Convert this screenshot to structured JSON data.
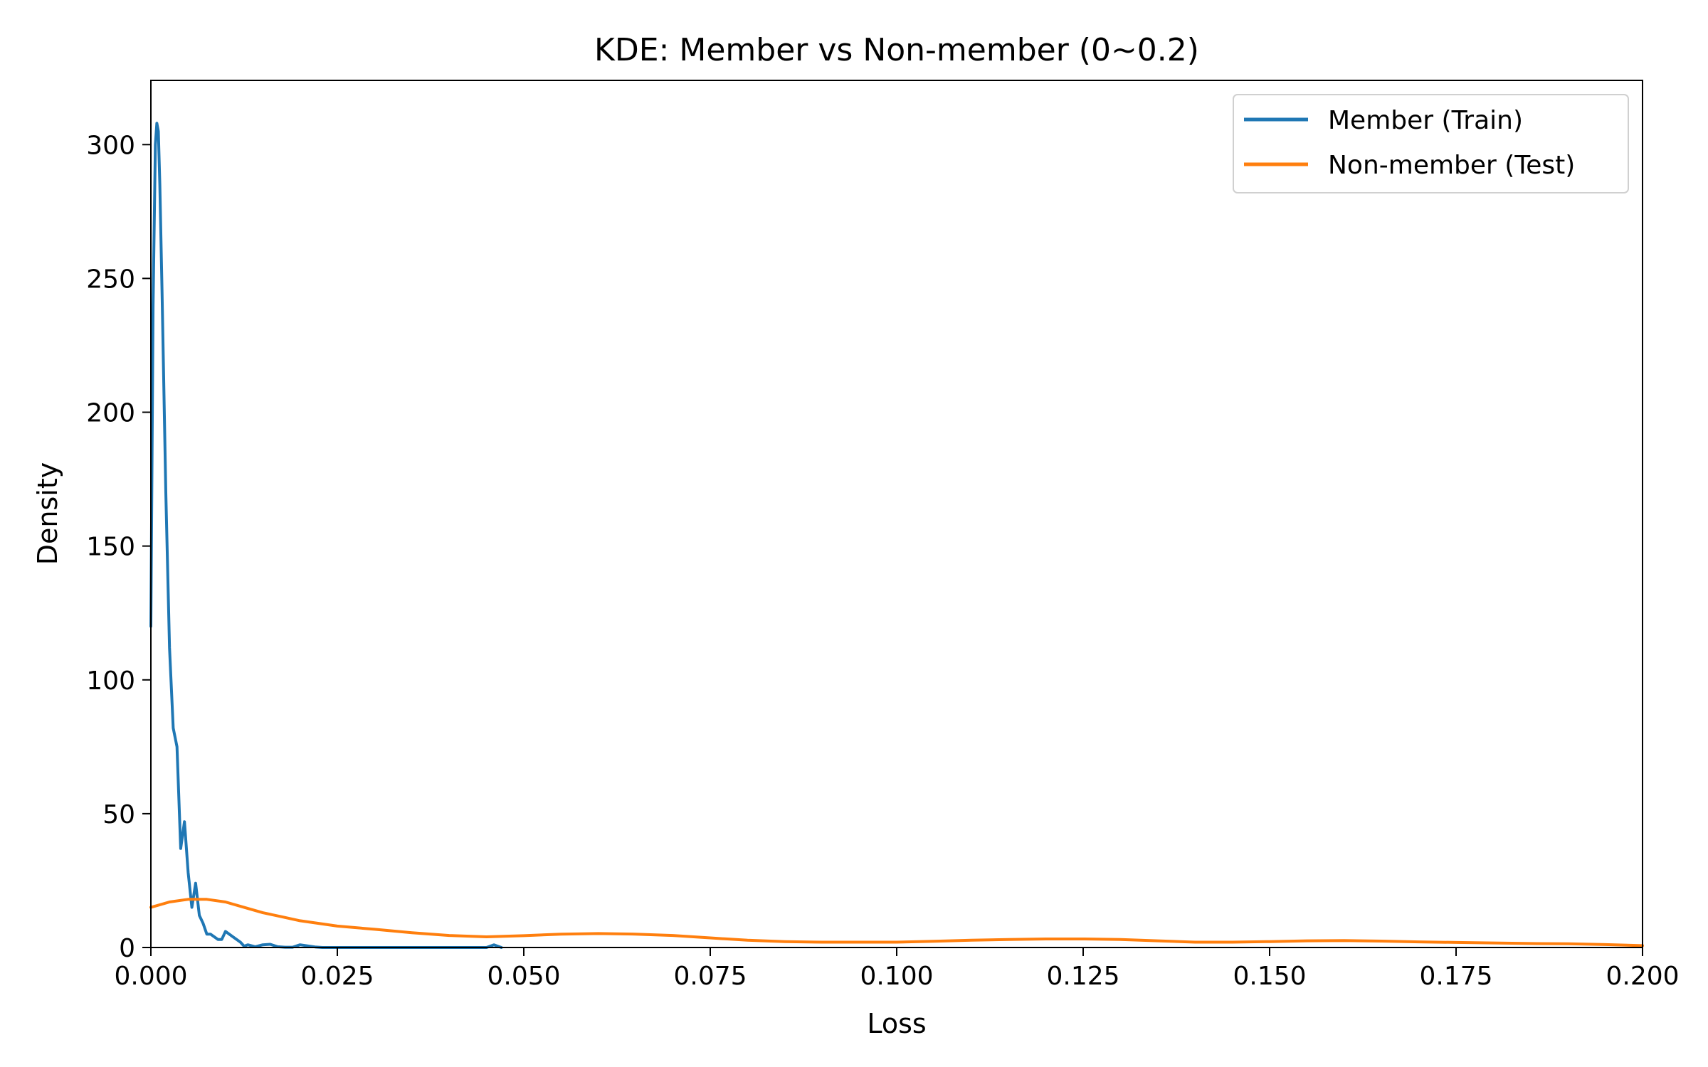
{
  "chart_data": {
    "type": "line",
    "title": "KDE: Member vs Non-member (0~0.2)",
    "xlabel": "Loss",
    "ylabel": "Density",
    "xlim": [
      0.0,
      0.2
    ],
    "ylim": [
      0,
      324
    ],
    "xticks": [
      "0.000",
      "0.025",
      "0.050",
      "0.075",
      "0.100",
      "0.125",
      "0.150",
      "0.175",
      "0.200"
    ],
    "xtick_values": [
      0.0,
      0.025,
      0.05,
      0.075,
      0.1,
      0.125,
      0.15,
      0.175,
      0.2
    ],
    "yticks": [
      "0",
      "50",
      "100",
      "150",
      "200",
      "250",
      "300"
    ],
    "ytick_values": [
      0,
      50,
      100,
      150,
      200,
      250,
      300
    ],
    "grid": false,
    "legend": {
      "placement": "top-right"
    },
    "series": [
      {
        "name": "Member (Train)",
        "color": "#1f77b4",
        "x": [
          0.0,
          0.0003,
          0.0006,
          0.0008,
          0.001,
          0.0012,
          0.0015,
          0.002,
          0.0025,
          0.003,
          0.0035,
          0.004,
          0.0045,
          0.005,
          0.0055,
          0.006,
          0.0065,
          0.007,
          0.0075,
          0.008,
          0.0085,
          0.009,
          0.0095,
          0.01,
          0.011,
          0.012,
          0.0125,
          0.013,
          0.014,
          0.015,
          0.016,
          0.017,
          0.018,
          0.019,
          0.02,
          0.022,
          0.023,
          0.025,
          0.03,
          0.04,
          0.045,
          0.046,
          0.0465,
          0.047
        ],
        "values": [
          120,
          240,
          300,
          308,
          305,
          285,
          245,
          170,
          112,
          82,
          75,
          37,
          47,
          28,
          15,
          24,
          12,
          9,
          5,
          5,
          4,
          3,
          3,
          6,
          4,
          2,
          0.5,
          1,
          0.3,
          1,
          1.2,
          0.3,
          0.1,
          0.1,
          1,
          0.2,
          0,
          0,
          0,
          0,
          0,
          1,
          0.5,
          0
        ]
      },
      {
        "name": "Non-member (Test)",
        "color": "#ff7f0e",
        "x": [
          0.0,
          0.0025,
          0.005,
          0.0075,
          0.01,
          0.0125,
          0.015,
          0.0175,
          0.02,
          0.025,
          0.03,
          0.035,
          0.04,
          0.045,
          0.05,
          0.055,
          0.06,
          0.065,
          0.07,
          0.075,
          0.08,
          0.085,
          0.09,
          0.095,
          0.1,
          0.105,
          0.11,
          0.115,
          0.12,
          0.125,
          0.13,
          0.135,
          0.14,
          0.145,
          0.15,
          0.155,
          0.16,
          0.165,
          0.17,
          0.175,
          0.18,
          0.185,
          0.19,
          0.195,
          0.2
        ],
        "values": [
          15,
          17,
          18,
          18,
          17,
          15,
          13,
          11.5,
          10,
          8,
          6.8,
          5.5,
          4.5,
          4,
          4.4,
          5,
          5.2,
          5,
          4.5,
          3.6,
          2.7,
          2.2,
          2,
          2,
          2,
          2.3,
          2.7,
          3,
          3.2,
          3.2,
          3,
          2.5,
          2,
          2,
          2.2,
          2.5,
          2.6,
          2.4,
          2.1,
          1.9,
          1.7,
          1.5,
          1.4,
          1.1,
          0.7
        ]
      }
    ]
  }
}
